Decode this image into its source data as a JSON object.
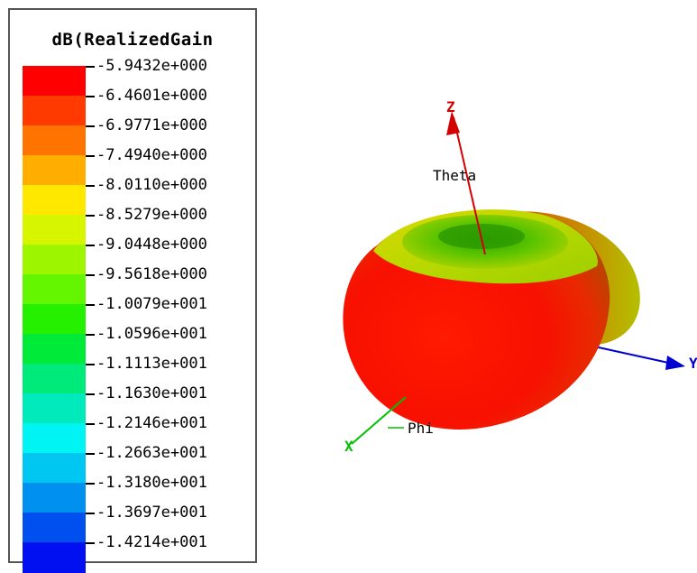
{
  "legend": {
    "title": "dB(RealizedGain",
    "levels": [
      {
        "label": "-5.9432e+000",
        "color": "#ff0000"
      },
      {
        "label": "-6.4601e+000",
        "color": "#ff3a00"
      },
      {
        "label": "-6.9771e+000",
        "color": "#ff7400"
      },
      {
        "label": "-7.4940e+000",
        "color": "#ffae00"
      },
      {
        "label": "-8.0110e+000",
        "color": "#ffe800"
      },
      {
        "label": "-8.5279e+000",
        "color": "#d8f500"
      },
      {
        "label": "-9.0448e+000",
        "color": "#9ef500"
      },
      {
        "label": "-9.5618e+000",
        "color": "#64f500"
      },
      {
        "label": "-1.0079e+001",
        "color": "#25f000"
      },
      {
        "label": "-1.0596e+001",
        "color": "#00ea3a"
      },
      {
        "label": "-1.1113e+001",
        "color": "#00ea7c"
      },
      {
        "label": "-1.1630e+001",
        "color": "#00eabc"
      },
      {
        "label": "-1.2146e+001",
        "color": "#00f4f4"
      },
      {
        "label": "-1.2663e+001",
        "color": "#00c6f2"
      },
      {
        "label": "-1.3180e+001",
        "color": "#0090f0"
      },
      {
        "label": "-1.3697e+001",
        "color": "#0050f0"
      },
      {
        "label": "-1.4214e+001",
        "color": "#0010f0"
      }
    ]
  },
  "axes": {
    "z_label": "Z",
    "y_label": "Y",
    "x_label": "X",
    "theta_label": "Theta",
    "phi_label": "Phi",
    "z_color": "#d40000",
    "y_color": "#0000d0",
    "x_color": "#00c000"
  }
}
